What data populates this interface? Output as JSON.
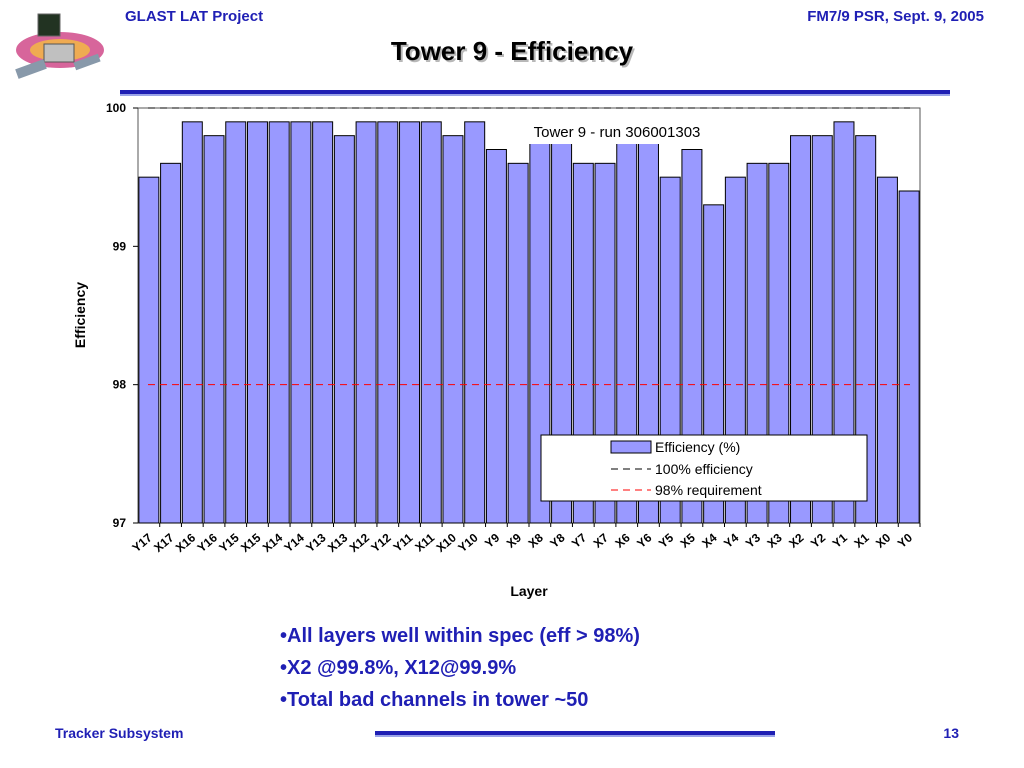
{
  "header": {
    "left": "GLAST LAT Project",
    "right": "FM7/9 PSR, Sept. 9, 2005"
  },
  "slide_title": "Tower 9 - Efficiency",
  "bullets": [
    "•All layers well within spec (eff > 98%)",
    "•X2 @99.8%, X12@99.9%",
    "•Total bad channels in tower ~50"
  ],
  "footer": {
    "left": "Tracker Subsystem",
    "page": "13"
  },
  "colors": {
    "brand": "#1f1fb4",
    "bar_fill": "#9999ff",
    "requirement_line": "#ff0000"
  },
  "chart_data": {
    "type": "bar",
    "title": "Tower 9 - run 306001303",
    "xlabel": "Layer",
    "ylabel": "Efficiency",
    "ylim": [
      97,
      100
    ],
    "yticks": [
      97,
      98,
      99,
      100
    ],
    "grid": false,
    "legend_position": "lower-right",
    "categories": [
      "Y17",
      "X17",
      "X16",
      "Y16",
      "Y15",
      "X15",
      "X14",
      "Y14",
      "Y13",
      "X13",
      "X12",
      "Y12",
      "Y11",
      "X11",
      "X10",
      "Y10",
      "Y9",
      "X9",
      "X8",
      "Y8",
      "Y7",
      "X7",
      "X6",
      "Y6",
      "Y5",
      "X5",
      "X4",
      "Y4",
      "Y3",
      "X3",
      "X2",
      "Y2",
      "Y1",
      "X1",
      "X0",
      "Y0"
    ],
    "series": [
      {
        "name": "Efficiency (%)",
        "values": [
          99.5,
          99.6,
          99.9,
          99.8,
          99.9,
          99.9,
          99.9,
          99.9,
          99.9,
          99.8,
          99.9,
          99.9,
          99.9,
          99.9,
          99.8,
          99.9,
          99.7,
          99.6,
          99.8,
          99.8,
          99.6,
          99.6,
          99.8,
          99.8,
          99.5,
          99.7,
          99.3,
          99.5,
          99.6,
          99.6,
          99.8,
          99.8,
          99.9,
          99.8,
          99.5,
          99.4
        ]
      }
    ],
    "reference_lines": [
      {
        "name": "100% efficiency",
        "value": 100,
        "color": "#000000",
        "style": "dashed"
      },
      {
        "name": "98% requirement",
        "value": 98,
        "color": "#ff0000",
        "style": "dashed"
      }
    ]
  }
}
